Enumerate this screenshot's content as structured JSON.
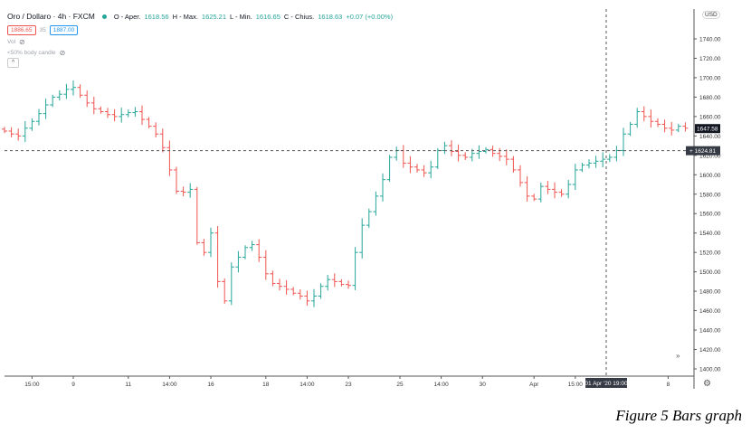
{
  "header": {
    "symbol": "Oro / Dollaro · 4h · FXCM",
    "open_label": "O - Aper.",
    "open": "1618.56",
    "high_label": "H - Max.",
    "high": "1625.21",
    "low_label": "L - Min.",
    "low": "1616.65",
    "close_label": "C - Chius.",
    "close": "1618.63",
    "change": "+0.07 (+0.00%)"
  },
  "indicators": {
    "bid": "1886.65",
    "spread": "35",
    "ask": "1887.00",
    "vol_label": "Vol",
    "body_label": "<50% body candle",
    "collapse_icon": "^"
  },
  "caption": "Figure 5 Bars graph",
  "colors": {
    "up": "#26a69a",
    "down": "#ef5350"
  },
  "chart_data": {
    "type": "ohlc-bar",
    "title": "Oro / Dollaro 4h FXCM",
    "currency": "USD",
    "ylim": [
      1390,
      1760
    ],
    "yticks": [
      1740,
      1720,
      1700,
      1680,
      1660,
      1640,
      1620,
      1600,
      1580,
      1560,
      1540,
      1520,
      1500,
      1480,
      1460,
      1440,
      1420,
      1400
    ],
    "ytick_labels": [
      "1740.00",
      "1720.00",
      "1700.00",
      "1680.00",
      "1660.00",
      "1640.00",
      "1620.00",
      "1600.00",
      "1580.00",
      "1560.00",
      "1540.00",
      "1520.00",
      "1500.00",
      "1480.00",
      "1460.00",
      "1440.00",
      "1420.00",
      "1400.00"
    ],
    "xtick_labels": [
      {
        "label": "15:00",
        "bar": 4
      },
      {
        "label": "9",
        "bar": 10
      },
      {
        "label": "11",
        "bar": 18
      },
      {
        "label": "14:00",
        "bar": 24
      },
      {
        "label": "16",
        "bar": 30
      },
      {
        "label": "18",
        "bar": 38
      },
      {
        "label": "14:00",
        "bar": 44
      },
      {
        "label": "23",
        "bar": 50
      },
      {
        "label": "25",
        "bar": 57.5
      },
      {
        "label": "14:00",
        "bar": 63.5
      },
      {
        "label": "30",
        "bar": 69.5
      },
      {
        "label": "Apr",
        "bar": 77
      },
      {
        "label": "15:00",
        "bar": 83
      },
      {
        "label": "8",
        "bar": 96.5
      }
    ],
    "closes": [
      1645,
      1642,
      1640,
      1648,
      1655,
      1663,
      1672,
      1680,
      1683,
      1688,
      1690,
      1682,
      1674,
      1668,
      1665,
      1662,
      1660,
      1662,
      1664,
      1665,
      1657,
      1650,
      1642,
      1628,
      1605,
      1583,
      1582,
      1585,
      1530,
      1520,
      1540,
      1490,
      1470,
      1505,
      1515,
      1525,
      1528,
      1515,
      1498,
      1488,
      1485,
      1482,
      1478,
      1475,
      1470,
      1475,
      1485,
      1492,
      1490,
      1487,
      1486,
      1520,
      1548,
      1562,
      1578,
      1595,
      1618,
      1625,
      1612,
      1608,
      1605,
      1602,
      1608,
      1625,
      1630,
      1624,
      1620,
      1618,
      1622,
      1624,
      1626,
      1622,
      1619,
      1616,
      1605,
      1592,
      1578,
      1575,
      1588,
      1585,
      1582,
      1580,
      1590,
      1605,
      1610,
      1612,
      1614,
      1616,
      1618,
      1625,
      1642,
      1652,
      1665,
      1660,
      1655,
      1652,
      1648,
      1646,
      1650,
      1648
    ],
    "last_price": "1647.58",
    "crosshair_price": "1624.81",
    "crosshair_time": "01 Apr '20   19:00",
    "crosshair_bar": 87.5
  }
}
